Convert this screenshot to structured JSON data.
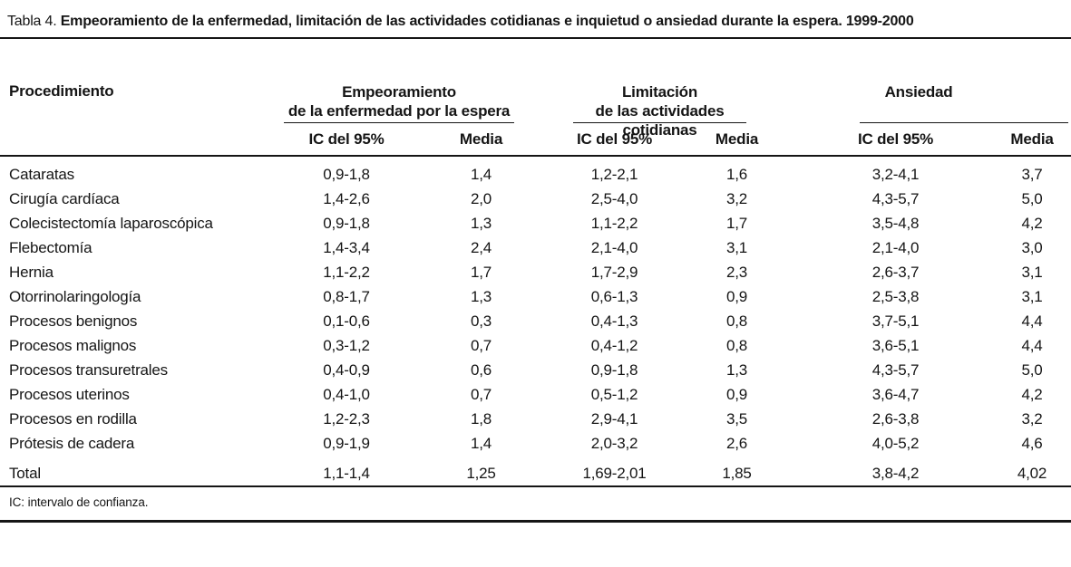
{
  "title": {
    "label": "Tabla 4.",
    "text": "Empeoramiento de la enfermedad, limitación de las actividades cotidianas e inquietud o ansiedad durante la espera. 1999-2000"
  },
  "table": {
    "procedure_header": "Procedimiento",
    "groups": [
      {
        "line1": "Empeoramiento",
        "line2": "de la enfermedad por la espera"
      },
      {
        "line1": "Limitación",
        "line2": "de las actividades cotidianas"
      },
      {
        "line1": "Ansiedad",
        "line2": ""
      }
    ],
    "subheaders": {
      "ic": "IC del 95%",
      "media": "Media"
    },
    "rows": [
      {
        "name": "Cataratas",
        "ic1": "0,9-1,8",
        "media1": "1,4",
        "ic2": "1,2-2,1",
        "media2": "1,6",
        "ic3": "3,2-4,1",
        "media3": "3,7"
      },
      {
        "name": "Cirugía cardíaca",
        "ic1": "1,4-2,6",
        "media1": "2,0",
        "ic2": "2,5-4,0",
        "media2": "3,2",
        "ic3": "4,3-5,7",
        "media3": "5,0"
      },
      {
        "name": "Colecistectomía laparoscópica",
        "ic1": "0,9-1,8",
        "media1": "1,3",
        "ic2": "1,1-2,2",
        "media2": "1,7",
        "ic3": "3,5-4,8",
        "media3": "4,2"
      },
      {
        "name": "Flebectomía",
        "ic1": "1,4-3,4",
        "media1": "2,4",
        "ic2": "2,1-4,0",
        "media2": "3,1",
        "ic3": "2,1-4,0",
        "media3": "3,0"
      },
      {
        "name": "Hernia",
        "ic1": "1,1-2,2",
        "media1": "1,7",
        "ic2": "1,7-2,9",
        "media2": "2,3",
        "ic3": "2,6-3,7",
        "media3": "3,1"
      },
      {
        "name": "Otorrinolaringología",
        "ic1": "0,8-1,7",
        "media1": "1,3",
        "ic2": "0,6-1,3",
        "media2": "0,9",
        "ic3": "2,5-3,8",
        "media3": "3,1"
      },
      {
        "name": "Procesos benignos",
        "ic1": "0,1-0,6",
        "media1": "0,3",
        "ic2": "0,4-1,3",
        "media2": "0,8",
        "ic3": "3,7-5,1",
        "media3": "4,4"
      },
      {
        "name": "Procesos malignos",
        "ic1": "0,3-1,2",
        "media1": "0,7",
        "ic2": "0,4-1,2",
        "media2": "0,8",
        "ic3": "3,6-5,1",
        "media3": "4,4"
      },
      {
        "name": "Procesos transuretrales",
        "ic1": "0,4-0,9",
        "media1": "0,6",
        "ic2": "0,9-1,8",
        "media2": "1,3",
        "ic3": "4,3-5,7",
        "media3": "5,0"
      },
      {
        "name": "Procesos uterinos",
        "ic1": "0,4-1,0",
        "media1": "0,7",
        "ic2": "0,5-1,2",
        "media2": "0,9",
        "ic3": "3,6-4,7",
        "media3": "4,2"
      },
      {
        "name": "Procesos en rodilla",
        "ic1": "1,2-2,3",
        "media1": "1,8",
        "ic2": "2,9-4,1",
        "media2": "3,5",
        "ic3": "2,6-3,8",
        "media3": "3,2"
      },
      {
        "name": "Prótesis de cadera",
        "ic1": "0,9-1,9",
        "media1": "1,4",
        "ic2": "2,0-3,2",
        "media2": "2,6",
        "ic3": "4,0-5,2",
        "media3": "4,6"
      }
    ],
    "total": {
      "name": "Total",
      "ic1": "1,1-1,4",
      "media1": "1,25",
      "ic2": "1,69-2,01",
      "media2": "1,85",
      "ic3": "3,8-4,2",
      "media3": "4,02"
    }
  },
  "footnote": "IC: intervalo de confianza.",
  "colors": {
    "text": "#151515",
    "rule": "#151515",
    "background": "#ffffff"
  }
}
